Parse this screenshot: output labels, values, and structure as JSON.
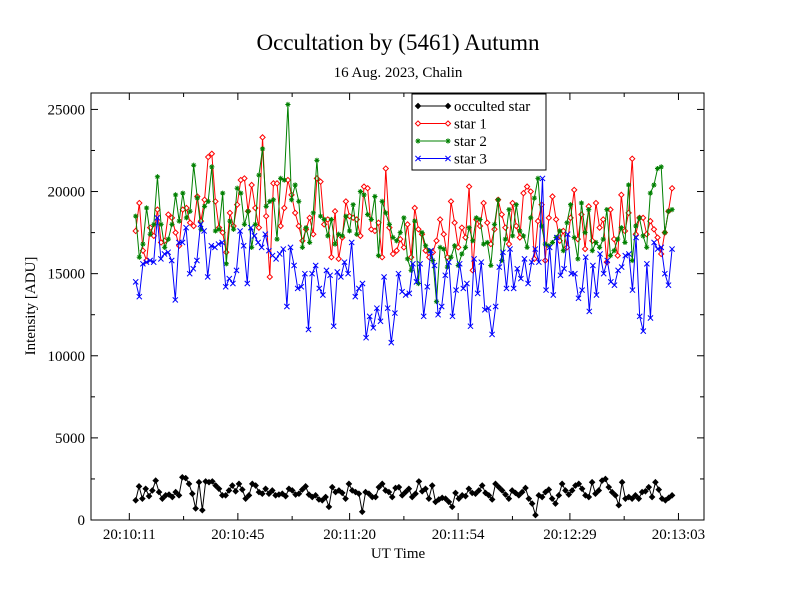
{
  "chart_data": {
    "type": "line",
    "title": "Occultation by (5461) Autumn",
    "subtitle": "16 Aug. 2023, Chalin",
    "xlabel": "UT Time",
    "ylabel": "Intensity [ADU]",
    "ylim": [
      0,
      26000
    ],
    "yticks": [
      0,
      5000,
      10000,
      15000,
      20000,
      25000
    ],
    "x_tick_labels": [
      "20:10:11",
      "20:10:45",
      "20:11:20",
      "20:11:54",
      "20:12:29",
      "20:13:03"
    ],
    "x_start_label": "20:09:59",
    "x_end_label": "20:13:11",
    "sample_interval_s": 1,
    "legend_position": "top-center",
    "series": [
      {
        "name": "occulted star",
        "color": "#000000",
        "marker": "diamond-filled",
        "values": [
          1200,
          2050,
          1300,
          1900,
          1450,
          1800,
          2400,
          1700,
          1300,
          1500,
          1550,
          1400,
          1700,
          1500,
          2600,
          2550,
          2200,
          1600,
          700,
          2300,
          600,
          2350,
          2300,
          2350,
          2100,
          1900,
          1500,
          1500,
          1800,
          2100,
          1750,
          2200,
          1850,
          1300,
          1500,
          2200,
          2100,
          1700,
          1600,
          1900,
          1600,
          1800,
          1500,
          1550,
          1600,
          1450,
          1900,
          1800,
          1550,
          1600,
          1850,
          2050,
          1550,
          1400,
          1500,
          1250,
          1200,
          1400,
          800,
          2000,
          1700,
          1800,
          1650,
          1300,
          2200,
          1800,
          1700,
          1600,
          500,
          1700,
          1600,
          1400,
          1400,
          2000,
          2200,
          1800,
          1700,
          1400,
          1950,
          2000,
          1500,
          1700,
          1900,
          1400,
          1600,
          2350,
          1750,
          1900,
          1300,
          2100,
          1100,
          1250,
          1350,
          1300,
          1100,
          800,
          1650,
          1300,
          1500,
          1450,
          1900,
          1650,
          1600,
          1800,
          2100,
          1650,
          1500,
          1250,
          2200,
          2000,
          1800,
          1550,
          1300,
          1800,
          1650,
          1500,
          1700,
          1950,
          1300,
          1000,
          300,
          1500,
          1400,
          1700,
          1850,
          1300,
          1000,
          1500,
          2200,
          1800,
          1550,
          1800,
          2100,
          2200,
          1900,
          1500,
          1400,
          2300,
          1600,
          1800,
          2400,
          2500,
          2000,
          1700,
          1500,
          900,
          2300,
          1300,
          1400,
          1300,
          1500,
          1300,
          1700,
          1750,
          2000,
          1400,
          2300,
          1850,
          1300,
          1200,
          1350,
          1500
        ]
      },
      {
        "name": "star 1",
        "color": "#ff0000",
        "marker": "diamond-open",
        "values": [
          17600,
          19300,
          16400,
          15800,
          17800,
          17300,
          18900,
          16900,
          17000,
          18600,
          18400,
          17500,
          16700,
          18900,
          19000,
          18100,
          17900,
          19700,
          18200,
          19500,
          22100,
          22300,
          19400,
          17800,
          17500,
          16300,
          18700,
          17900,
          19200,
          20700,
          20800,
          18800,
          20400,
          19000,
          17800,
          23300,
          18500,
          14800,
          20500,
          20500,
          17900,
          19000,
          20700,
          19800,
          18700,
          17900,
          17000,
          17700,
          18400,
          17400,
          20800,
          20600,
          18000,
          18300,
          16000,
          18800,
          15900,
          17200,
          19400,
          18500,
          18400,
          18300,
          17300,
          20300,
          20200,
          17700,
          17600,
          18100,
          16000,
          21400,
          17800,
          16200,
          16400,
          17100,
          16600,
          18000,
          16000,
          19000,
          17700,
          17400,
          16400,
          16000,
          16300,
          17000,
          18300,
          17400,
          16000,
          19400,
          18100,
          16600,
          17800,
          17200,
          20300,
          15200,
          18300,
          17900,
          19300,
          18100,
          16800,
          17700,
          19500,
          18600,
          17800,
          16800,
          19300,
          17900,
          17200,
          19900,
          20300,
          20000,
          15900,
          18200,
          19200,
          15800,
          18400,
          19700,
          18300,
          17000,
          17600,
          16600,
          18400,
          20100,
          17100,
          18600,
          16500,
          19100,
          17000,
          19300,
          17800,
          18300,
          15700,
          18900,
          17100,
          16100,
          19800,
          17600,
          18700,
          22000,
          17400,
          18400,
          18400,
          17400,
          18200,
          17700,
          17200,
          16200,
          17500,
          18800,
          20200
        ]
      },
      {
        "name": "star 2",
        "color": "#008000",
        "marker": "star",
        "values": [
          18500,
          16000,
          16800,
          19000,
          17400,
          18000,
          20900,
          18000,
          16600,
          17100,
          18000,
          19800,
          18200,
          19900,
          18400,
          18800,
          21600,
          19600,
          17700,
          19100,
          19400,
          21500,
          17600,
          17700,
          19900,
          15600,
          18200,
          17700,
          20200,
          19900,
          18000,
          18800,
          16600,
          18000,
          21000,
          22600,
          19100,
          19400,
          19500,
          17100,
          20800,
          20700,
          25300,
          19500,
          20400,
          19400,
          16600,
          17800,
          16900,
          18700,
          21900,
          18500,
          18300,
          17300,
          18300,
          16800,
          17400,
          17300,
          18500,
          17600,
          19200,
          17400,
          20000,
          19800,
          18600,
          18300,
          19700,
          16100,
          19400,
          18700,
          18000,
          17200,
          17000,
          17500,
          18400,
          15900,
          15200,
          18200,
          14400,
          17500,
          16700,
          16400,
          15800,
          13300,
          16600,
          16500,
          15400,
          16000,
          16700,
          15500,
          16200,
          16600,
          17800,
          17000,
          18400,
          18300,
          16800,
          16900,
          15500,
          18000,
          19500,
          15800,
          17100,
          18900,
          17300,
          19200,
          17600,
          17300,
          16600,
          18400,
          19600,
          20800,
          17900,
          16800,
          16700,
          16900,
          17200,
          17600,
          16400,
          18100,
          19200,
          17200,
          15900,
          19300,
          17500,
          18900,
          16400,
          16900,
          16600,
          17100,
          18900,
          16100,
          16400,
          17100,
          17800,
          16900,
          20400,
          15800,
          17900,
          18400,
          17300,
          16600,
          19900,
          20400,
          21400,
          21500,
          17500,
          18800,
          18900
        ]
      },
      {
        "name": "star 3",
        "color": "#0000ff",
        "marker": "x",
        "values": [
          14500,
          13600,
          15600,
          15700,
          15800,
          15700,
          18400,
          15900,
          16200,
          16300,
          15800,
          13400,
          16900,
          16900,
          17800,
          15000,
          15300,
          15800,
          18000,
          17600,
          14800,
          16700,
          16600,
          16800,
          16900,
          14200,
          14700,
          14400,
          15200,
          17600,
          16700,
          14400,
          17800,
          17300,
          16900,
          16600,
          17400,
          16400,
          16100,
          15900,
          16200,
          16500,
          13000,
          16600,
          15500,
          14100,
          14200,
          15000,
          11600,
          15000,
          15500,
          14100,
          13700,
          15200,
          14900,
          11800,
          15100,
          14800,
          15700,
          15000,
          16900,
          13600,
          14100,
          14400,
          11100,
          12400,
          11700,
          12900,
          12100,
          14800,
          12900,
          10800,
          12600,
          15000,
          13900,
          13700,
          13800,
          15600,
          14500,
          15600,
          12400,
          14200,
          16400,
          15500,
          12500,
          13000,
          14900,
          15700,
          12400,
          14000,
          15600,
          14100,
          14400,
          11800,
          15900,
          13800,
          15700,
          12800,
          12900,
          11300,
          13000,
          15400,
          16300,
          14100,
          16500,
          14100,
          15300,
          14700,
          15900,
          14400,
          15700,
          16500,
          15700,
          20800,
          14000,
          16600,
          13700,
          17200,
          14900,
          15300,
          17400,
          15000,
          15000,
          13500,
          14000,
          16000,
          12700,
          15500,
          13700,
          16200,
          15000,
          15800,
          14500,
          14300,
          15200,
          15400,
          16100,
          16200,
          14000,
          17200,
          12400,
          11500,
          15600,
          12300,
          16900,
          16500,
          16600,
          15000,
          14300,
          16500
        ]
      }
    ]
  }
}
